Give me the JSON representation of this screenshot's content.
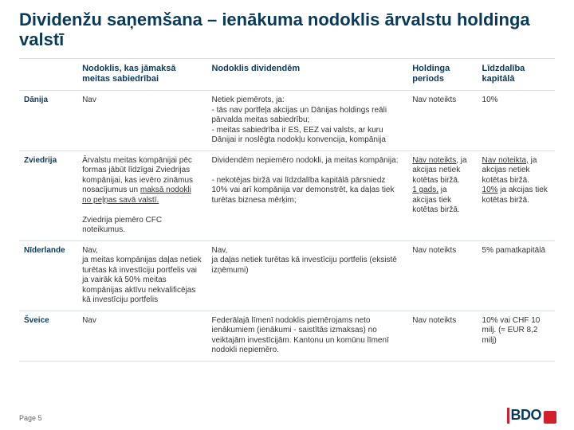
{
  "title": "Dividenžu saņemšana – ienākuma nodoklis ārvalstu holdinga valstī",
  "columns": [
    "",
    "Nodoklis, kas jāmaksā meitas sabiedrībai",
    "Nodoklis dividendēm",
    "Holdinga periods",
    "Līdzdalība kapitālā"
  ],
  "rows": [
    {
      "name": "Dānija",
      "c2": "Nav",
      "c3": "Netiek piemērots, ja:\n- tās nav portfeļa akcijas un Dānijas holdings reāli pārvalda meitas sabiedrību;\n- meitas sabiedrība ir ES, EEZ vai valsts, ar kuru Dānijai ir noslēgta nodokļu konvencija, kompānija",
      "c4": "Nav noteikts",
      "c5": "10%"
    },
    {
      "name": "Zviedrija",
      "c2_a": "Ārvalstu meitas kompānijai pēc formas jābūt līdzīgai Zviedrijas kompānijai, kas ievēro zināmus nosacījumus un ",
      "c2_u": "maksā nodokli no peļņas savā valstī.",
      "c2_b": "Zviedrija piemēro CFC noteikumus.",
      "c3_a": "Dividendēm nepiemēro nodokli, ja meitas kompānija:",
      "c3_b": "- nekotējas biržā vai līdzdalība kapitālā pārsniedz 10% vai arī kompānija var demonstrēt, ka daļas tiek turētas biznesa mērķim;",
      "c4_a": "Nav noteikts,",
      "c4_b": " ja akcijas netiek kotētas biržā.",
      "c4_c": "1 gads,",
      "c4_d": " ja akcijas tiek kotētas biržā.",
      "c5_a": "Nav noteikta,",
      "c5_b": " ja akcijas netiek kotētas biržā.",
      "c5_c": "10%",
      "c5_d": " ja akcijas tiek kotētas biržā."
    },
    {
      "name": "Nīderlande",
      "c2": "Nav,\nja meitas kompānijas daļas netiek turētas kā investīciju portfelis vai ja vairāk kā 50% meitas kompānijas aktīvu nekvalificējas kā investīciju portfelis",
      "c3": "Nav,\nja daļas netiek turētas kā investīciju portfelis (eksistē izņēmumi)",
      "c4": "Nav noteikts",
      "c5": "5% pamatkapitālā"
    },
    {
      "name": "Šveice",
      "c2": "Nav",
      "c3": "Federālajā līmenī nodoklis piemērojams neto ienākumiem (ienākumi - saistītās izmaksas) no veiktajām investīcijām. Kantonu un komūnu līmenī nodokli nepiemēro.",
      "c4": "Nav noteikts",
      "c5": "10% vai CHF 10 milj. (≈ EUR 8,2 milj)"
    }
  ],
  "page_label": "Page 5",
  "logo_text": "BDO",
  "colors": {
    "heading": "#0a3a5a",
    "accent": "#d31f2b",
    "border": "#d6dee4"
  }
}
